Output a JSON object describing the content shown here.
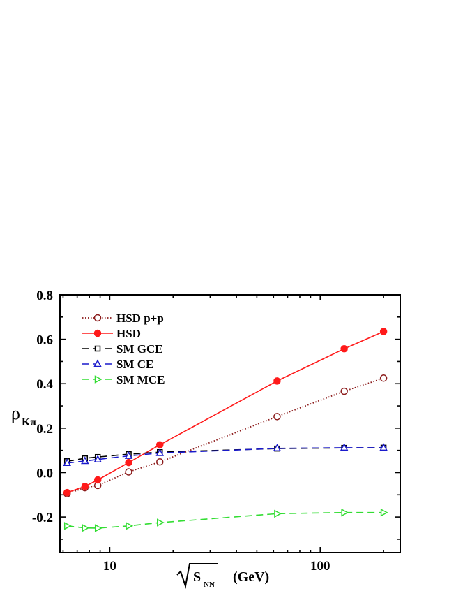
{
  "chart_data": {
    "type": "line",
    "x_scale": "log",
    "xlim": [
      5.8,
      240
    ],
    "ylim": [
      -0.36,
      0.8
    ],
    "x_ticks": [
      {
        "value": 10,
        "label": "10"
      },
      {
        "value": 100,
        "label": "100"
      }
    ],
    "y_ticks": [
      {
        "value": -0.2,
        "label": "-0.2"
      },
      {
        "value": 0.0,
        "label": "0.0"
      },
      {
        "value": 0.2,
        "label": "0.2"
      },
      {
        "value": 0.4,
        "label": "0.4"
      },
      {
        "value": 0.6,
        "label": "0.6"
      },
      {
        "value": 0.8,
        "label": "0.8"
      }
    ],
    "ylabel": {
      "main": "ρ",
      "sub": "Kπ"
    },
    "xlabel": {
      "radicand": "S",
      "radicand_sub": "NN",
      "unit": "(GeV)"
    },
    "legend_position": "top-left",
    "series": [
      {
        "name": "HSD p+p",
        "color": "#8b1a1a",
        "dash": "dot",
        "marker": "circle-open",
        "x": [
          6.27,
          7.62,
          8.77,
          12.3,
          17.3,
          62.4,
          130,
          200
        ],
        "y": [
          -0.095,
          -0.068,
          -0.058,
          0.003,
          0.048,
          0.252,
          0.366,
          0.425
        ]
      },
      {
        "name": "HSD",
        "color": "#ff1a1a",
        "dash": "solid",
        "marker": "circle-filled",
        "x": [
          6.27,
          7.62,
          8.77,
          12.3,
          17.3,
          62.4,
          130,
          200
        ],
        "y": [
          -0.09,
          -0.062,
          -0.033,
          0.045,
          0.125,
          0.412,
          0.557,
          0.635
        ]
      },
      {
        "name": "SM GCE",
        "color": "#000000",
        "dash": "dash",
        "marker": "square-open",
        "x": [
          6.27,
          7.62,
          8.77,
          12.3,
          17.3,
          62.4,
          130,
          200
        ],
        "y": [
          0.051,
          0.064,
          0.07,
          0.083,
          0.092,
          0.108,
          0.111,
          0.112
        ]
      },
      {
        "name": "SM CE",
        "color": "#1a1acc",
        "dash": "dash",
        "marker": "triangle-up-open",
        "x": [
          6.27,
          7.62,
          8.77,
          12.3,
          17.3,
          62.4,
          130,
          200
        ],
        "y": [
          0.043,
          0.052,
          0.059,
          0.075,
          0.088,
          0.109,
          0.112,
          0.112
        ]
      },
      {
        "name": "SM MCE",
        "color": "#33dd33",
        "dash": "dash",
        "marker": "triangle-right-open",
        "x": [
          6.27,
          7.62,
          8.77,
          12.3,
          17.3,
          62.4,
          130,
          200
        ],
        "y": [
          -0.24,
          -0.249,
          -0.25,
          -0.24,
          -0.225,
          -0.185,
          -0.18,
          -0.18
        ]
      }
    ]
  }
}
